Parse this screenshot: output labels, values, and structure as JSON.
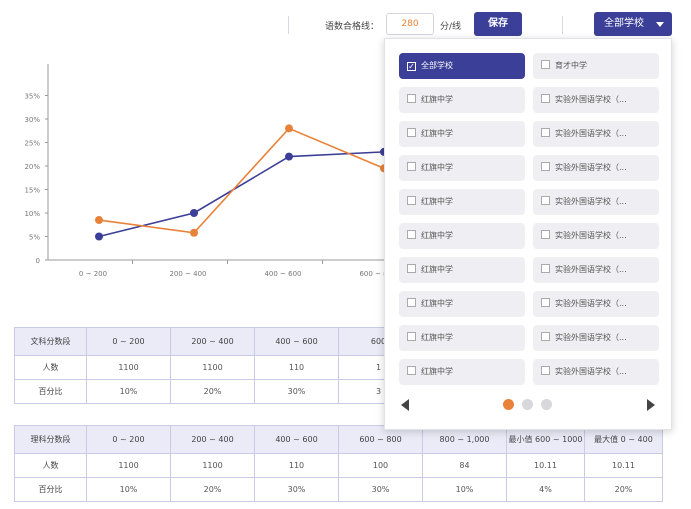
{
  "toolbar": {
    "score_label": "语数合格线：",
    "score_value": "280",
    "score_unit": "分/线",
    "save_label": "保存",
    "schools_label": "全部学校"
  },
  "colors": {
    "primary": "#3b3f97",
    "accent": "#e8823a"
  },
  "chart_data": {
    "type": "line",
    "categories": [
      "0 ~ 200",
      "200 ~ 400",
      "400 ~ 600",
      "600 ~ 800"
    ],
    "ylim": [
      0,
      40
    ],
    "ytick_labels": [
      "0",
      "5%",
      "10%",
      "15%",
      "20%",
      "25%",
      "30%",
      "35%"
    ],
    "series": [
      {
        "color": "#3b3f97",
        "values": [
          5,
          10,
          22,
          23
        ]
      },
      {
        "color": "#e8823a",
        "values": [
          8.5,
          5.8,
          28,
          19.5
        ]
      }
    ],
    "grid": false
  },
  "table1": {
    "header": [
      "文科分数段",
      "0 ~ 200",
      "200 ~ 400",
      "400 ~ 600",
      "600"
    ],
    "rows": [
      [
        "人数",
        "1100",
        "1100",
        "110",
        "1"
      ],
      [
        "百分比",
        "10%",
        "20%",
        "30%",
        "3"
      ]
    ]
  },
  "table2": {
    "header": [
      "理科分数段",
      "0 ~ 200",
      "200 ~ 400",
      "400 ~ 600",
      "600 ~ 800",
      "800 ~ 1,000",
      "最小值 600 ~ 1000",
      "最大值 0 ~ 400"
    ],
    "rows": [
      [
        "人数",
        "1100",
        "1100",
        "110",
        "100",
        "84",
        "10.11",
        "10.11"
      ],
      [
        "百分比",
        "10%",
        "20%",
        "30%",
        "30%",
        "10%",
        "4%",
        "20%"
      ]
    ]
  },
  "dropdown": {
    "options_left": [
      "全部学校",
      "红旗中学",
      "红旗中学",
      "红旗中学",
      "红旗中学",
      "红旗中学",
      "红旗中学",
      "红旗中学",
      "红旗中学",
      "红旗中学"
    ],
    "options_right": [
      "育才中学",
      "实验外国语学校（...",
      "实验外国语学校（...",
      "实验外国语学校（...",
      "实验外国语学校（...",
      "实验外国语学校（...",
      "实验外国语学校（...",
      "实验外国语学校（...",
      "实验外国语学校（...",
      "实验外国语学校（..."
    ],
    "selected": "全部学校",
    "page_count": 3,
    "current_page": 1
  }
}
